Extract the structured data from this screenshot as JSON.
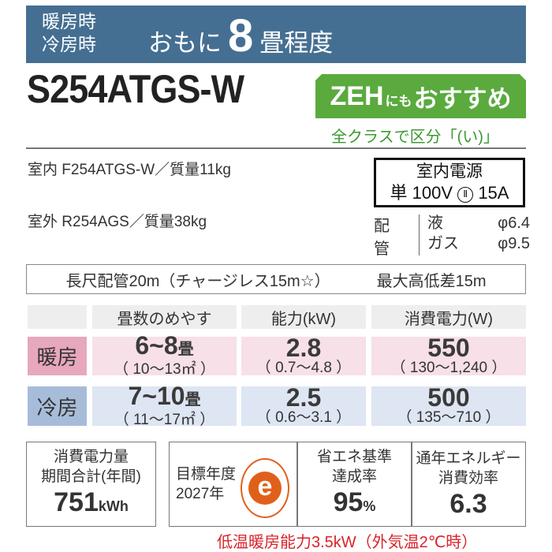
{
  "banner": {
    "mode1": "暖房時",
    "mode2": "冷房時",
    "prefix": "おもに",
    "tatami": "8",
    "suffix": "畳程度"
  },
  "model": "S254ATGS-W",
  "zeh": {
    "zeh": "ZEH",
    "nimo": "にも",
    "recommend": "おすすめ",
    "class": "全クラスで区分「(い)」"
  },
  "units": {
    "indoor": "室内 F254ATGS-W／質量11kg",
    "outdoor": "室外 R254AGS／質量38kg"
  },
  "power": {
    "title": "室内電源",
    "single": "単",
    "voltage": "100V",
    "plug": "Ⅱ",
    "amp": "15A"
  },
  "piping": {
    "label": "配管",
    "liquid_label": "液",
    "liquid": "φ6.4",
    "gas_label": "ガス",
    "gas": "φ9.5"
  },
  "long_pipe": {
    "length": "長尺配管20m（チャージレス15m☆）",
    "height": "最大高低差15m"
  },
  "table": {
    "headers": [
      "畳数のめやす",
      "能力(kW)",
      "消費電力(W)"
    ],
    "rows": [
      {
        "label": "暖房",
        "tatami": "6~8",
        "tatami_unit": "畳",
        "area": "（ 10～13㎡ ）",
        "capacity": "2.8",
        "capacity_range": "（ 0.7～4.8 ）",
        "power": "550",
        "power_range": "（ 130～1,240 ）"
      },
      {
        "label": "冷房",
        "tatami": "7~10",
        "tatami_unit": "畳",
        "area": "（ 11～17㎡ ）",
        "capacity": "2.5",
        "capacity_range": "（ 0.6～3.1 ）",
        "power": "500",
        "power_range": "（ 135～710 ）"
      }
    ]
  },
  "annual": {
    "l1": "消費電力量",
    "l2": "期間合計(年間)",
    "value": "751",
    "unit": "kWh"
  },
  "target": {
    "l1": "目標年度",
    "l2": "2027年",
    "logo": "e"
  },
  "achieve": {
    "l1": "省エネ基準",
    "l2": "達成率",
    "value": "95",
    "unit": "%"
  },
  "apf": {
    "l1": "通年エネルギー",
    "l2": "消費効率",
    "value": "6.3"
  },
  "low_temp": "低温暖房能力3.5kW（外気温2℃時）",
  "colors": {
    "banner": "#456f92",
    "zeh": "#5aaa3e",
    "heat": "#e7a7bd",
    "cool": "#a6bcd9",
    "red": "#d9232a",
    "energy_logo": "#e0601a"
  }
}
